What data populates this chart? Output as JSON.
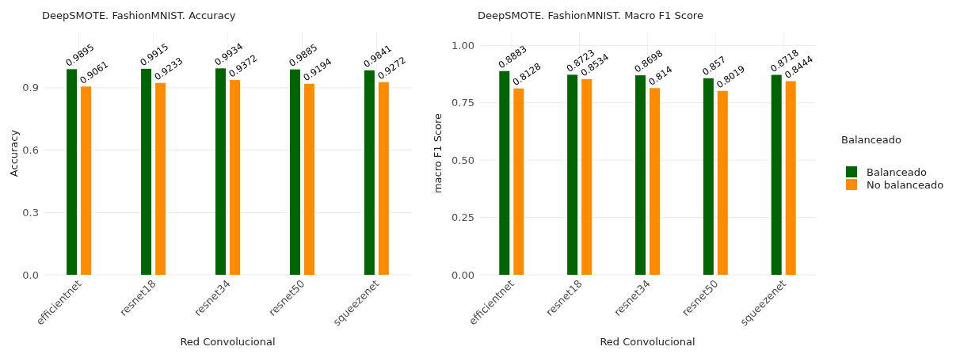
{
  "chart_data": [
    {
      "type": "bar",
      "title": "DeepSMOTE. FashionMNIST. Accuracy",
      "xlabel": "Red Convolucional",
      "ylabel": "Accuracy",
      "categories": [
        "efficientnet",
        "resnet18",
        "resnet34",
        "resnet50",
        "squeezenet"
      ],
      "series": [
        {
          "color": "#006400",
          "values": [
            0.9895,
            0.9915,
            0.9934,
            0.9885,
            0.9841
          ]
        },
        {
          "color": "#ff8c00",
          "values": [
            0.9061,
            0.9233,
            0.9372,
            0.9194,
            0.9272
          ]
        }
      ],
      "ylim": [
        0,
        1.17
      ],
      "yticks": [
        {
          "value": 0,
          "label": "0.0"
        },
        0.3,
        0.6,
        0.9
      ],
      "grid": "y",
      "data_labels": true,
      "legend": false
    },
    {
      "type": "bar",
      "title": "DeepSMOTE. FashionMNIST. Macro F1 Score",
      "xlabel": "Red Convolucional",
      "ylabel": "macro F1 Score",
      "legend_title": "Balanceado",
      "categories": [
        "efficientnet",
        "resnet18",
        "resnet34",
        "resnet50",
        "squeezenet"
      ],
      "series": [
        {
          "name": "Balanceado",
          "color": "#006400",
          "values": [
            0.8883,
            0.8723,
            0.8698,
            0.857,
            0.8718
          ]
        },
        {
          "name": "No balanceado",
          "color": "#ff8c00",
          "values": [
            0.8128,
            0.8534,
            0.814,
            0.8019,
            0.8444
          ]
        }
      ],
      "ylim": [
        0,
        1.06
      ],
      "yticks": [
        {
          "value": 0,
          "label": "0.00"
        },
        {
          "value": 0.25,
          "label": "0.25"
        },
        {
          "value": 0.5,
          "label": "0.50"
        },
        {
          "value": 0.75,
          "label": "0.75"
        },
        {
          "value": 1,
          "label": "1.00"
        }
      ],
      "grid": "y",
      "data_labels": true,
      "legend": "right"
    }
  ]
}
